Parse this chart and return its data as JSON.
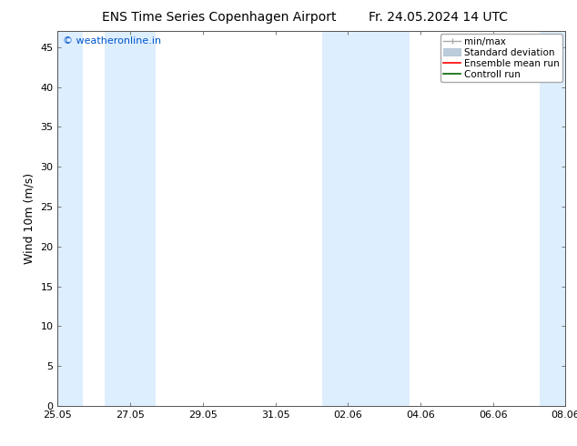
{
  "title_left": "ENS Time Series Copenhagen Airport",
  "title_right": "Fr. 24.05.2024 14 UTC",
  "ylabel": "Wind 10m (m/s)",
  "watermark": "© weatheronline.in",
  "watermark_color": "#0055cc",
  "ylim": [
    0,
    47
  ],
  "yticks": [
    0,
    5,
    10,
    15,
    20,
    25,
    30,
    35,
    40,
    45
  ],
  "x_start_num": 0,
  "x_end_num": 14,
  "xtick_labels": [
    "25.05",
    "27.05",
    "29.05",
    "31.05",
    "02.06",
    "04.06",
    "06.06",
    "08.06"
  ],
  "xtick_positions": [
    0,
    2,
    4,
    6,
    8,
    10,
    12,
    14
  ],
  "shaded_bands": [
    {
      "x_start": 0.0,
      "x_end": 0.7,
      "color": "#ddeeff"
    },
    {
      "x_start": 1.3,
      "x_end": 2.7,
      "color": "#ddeeff"
    },
    {
      "x_start": 7.3,
      "x_end": 9.7,
      "color": "#ddeeff"
    },
    {
      "x_start": 13.3,
      "x_end": 14.0,
      "color": "#ddeeff"
    }
  ],
  "legend_labels": [
    "min/max",
    "Standard deviation",
    "Ensemble mean run",
    "Controll run"
  ],
  "legend_minmax_color": "#aaaaaa",
  "legend_std_color": "#bbccdd",
  "legend_ens_color": "#ff0000",
  "legend_ctrl_color": "#006600",
  "background_color": "#ffffff",
  "plot_bg_color": "#ffffff",
  "border_color": "#000000",
  "tick_color": "#000000",
  "font_size_title": 10,
  "font_size_axis": 9,
  "font_size_tick": 8,
  "font_size_legend": 7.5,
  "font_size_watermark": 8
}
